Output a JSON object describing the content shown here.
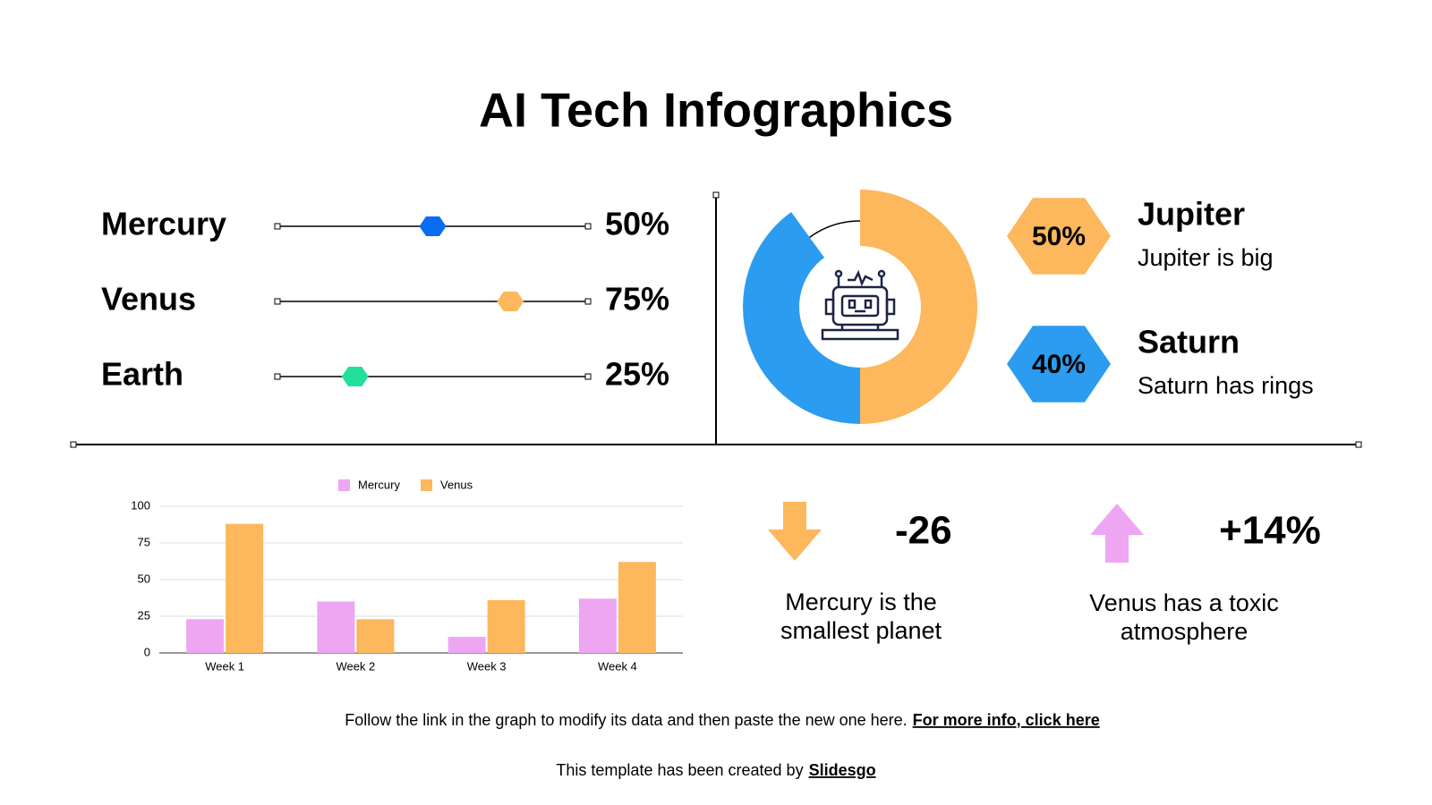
{
  "title": "AI Tech Infographics",
  "chart_data": [
    {
      "type": "slider",
      "categories": [
        "Mercury",
        "Venus",
        "Earth"
      ],
      "values": [
        50,
        75,
        25
      ],
      "value_labels": [
        "50%",
        "75%",
        "25%"
      ],
      "colors": [
        "#0a6cf0",
        "#fdb75c",
        "#22e09b"
      ],
      "xlim": [
        0,
        100
      ]
    },
    {
      "type": "pie",
      "categories": [
        "Jupiter",
        "Saturn"
      ],
      "descriptions": [
        "Jupiter is big",
        "Saturn has rings"
      ],
      "values": [
        50,
        40
      ],
      "value_labels": [
        "50%",
        "40%"
      ],
      "colors": [
        "#fdb75c",
        "#2b9cf0"
      ]
    },
    {
      "type": "bar",
      "categories": [
        "Week 1",
        "Week 2",
        "Week 3",
        "Week 4"
      ],
      "series": [
        {
          "name": "Mercury",
          "color": "#eea6f3",
          "values": [
            23,
            35,
            11,
            37
          ]
        },
        {
          "name": "Venus",
          "color": "#fdb75c",
          "values": [
            88,
            23,
            36,
            62
          ]
        }
      ],
      "ylim": [
        0,
        100
      ],
      "yticks": [
        0,
        25,
        50,
        75,
        100
      ],
      "grid": true
    }
  ],
  "stats": [
    {
      "value": "-26",
      "lines": [
        "Mercury is the",
        "smallest planet"
      ]
    },
    {
      "value": "+14%",
      "lines": [
        "Venus has a toxic",
        "atmosphere"
      ]
    }
  ],
  "footer": {
    "note": "Follow the link in the graph to modify its data and then paste the new one here.",
    "link": "For more info, click here",
    "credit": "This template has been created by",
    "brand": "Slidesgo"
  }
}
